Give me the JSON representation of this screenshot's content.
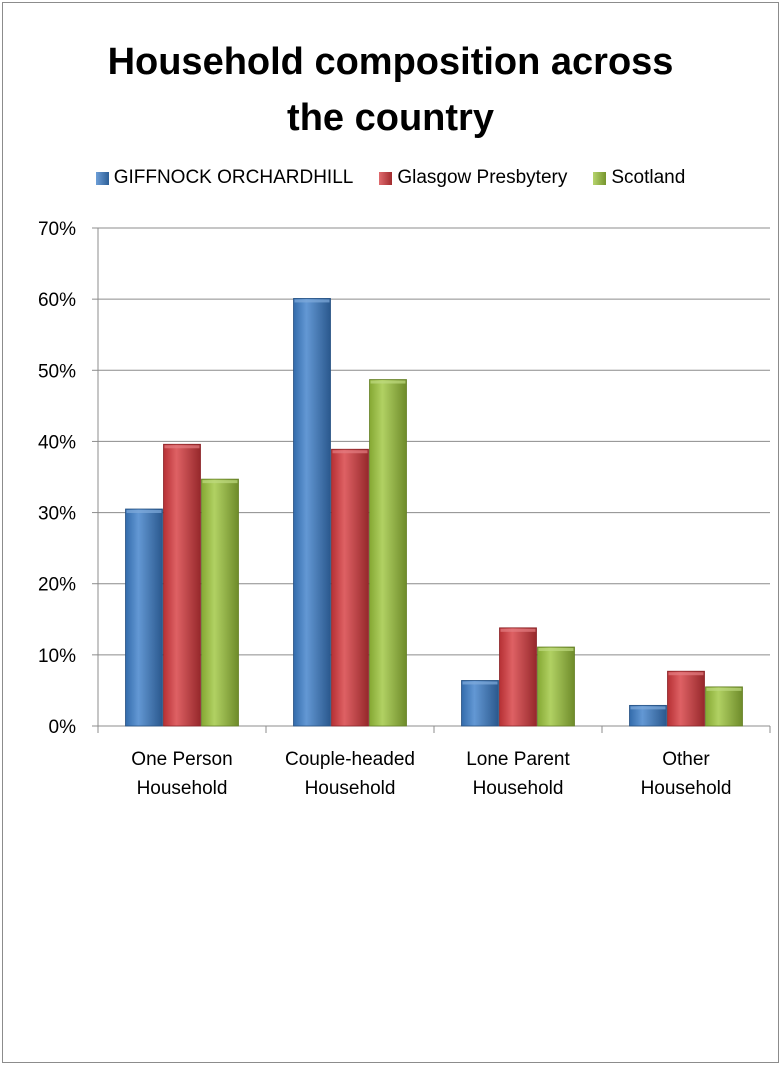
{
  "chart_data": {
    "type": "bar",
    "title": "Household composition across\nthe country",
    "categories": [
      "One Person\nHousehold",
      "Couple-headed\nHousehold",
      "Lone Parent\nHousehold",
      "Other\nHousehold"
    ],
    "series": [
      {
        "name": "GIFFNOCK ORCHARDHILL",
        "values": [
          30.5,
          60.1,
          6.4,
          2.9
        ],
        "color": "#3c7ec9"
      },
      {
        "name": "Glasgow Presbytery",
        "values": [
          39.6,
          38.9,
          13.8,
          7.7
        ],
        "color": "#d6393d"
      },
      {
        "name": "Scotland",
        "values": [
          34.7,
          48.7,
          11.1,
          5.5
        ],
        "color": "#9dc63c"
      }
    ],
    "ylim": [
      0,
      70
    ],
    "yticks": [
      "0%",
      "10%",
      "20%",
      "30%",
      "40%",
      "50%",
      "60%",
      "70%"
    ],
    "ytick_values": [
      0,
      10,
      20,
      30,
      40,
      50,
      60,
      70
    ],
    "grid": true,
    "legend_position": "top"
  }
}
